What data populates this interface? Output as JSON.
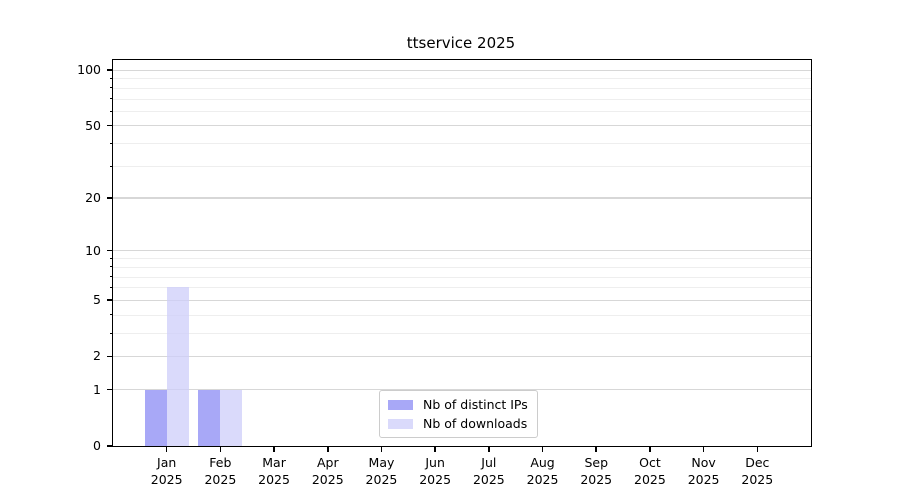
{
  "title": "ttservice 2025",
  "colors": {
    "background": "#ffffff",
    "axis": "#000000",
    "grid_major": "#d7d7d7",
    "grid_minor": "#eeeeee",
    "ips_bar": "rgba(134,134,244,0.72)",
    "downloads_bar": "rgba(205,205,250,0.75)",
    "ips_bar_hex_on_white": "#aaaaf7",
    "downloads_bar_hex_on_white": "#dcdcfb",
    "legend_border": "#cccccc"
  },
  "chart_data": {
    "type": "bar",
    "title": "ttservice 2025",
    "categories": [
      "Jan",
      "Feb",
      "Mar",
      "Apr",
      "May",
      "Jun",
      "Jul",
      "Aug",
      "Sep",
      "Oct",
      "Nov",
      "Dec"
    ],
    "year_label": "2025",
    "series": [
      {
        "name": "Nb of distinct IPs",
        "color_key": "ips_bar",
        "values": [
          1,
          1,
          0,
          0,
          0,
          0,
          0,
          0,
          0,
          0,
          0,
          0
        ]
      },
      {
        "name": "Nb of downloads",
        "color_key": "downloads_bar",
        "values": [
          6,
          1,
          0,
          0,
          0,
          0,
          0,
          0,
          0,
          0,
          0,
          0
        ]
      }
    ],
    "y_scale": "log1p",
    "y_ticks": [
      0,
      1,
      2,
      5,
      10,
      20,
      50,
      100
    ],
    "y_minor_ticks": [
      3,
      4,
      6,
      7,
      8,
      9,
      30,
      40,
      60,
      70,
      80,
      90
    ],
    "ylim": [
      0,
      108
    ],
    "xlabel": "",
    "ylabel": "",
    "grid": "horizontal",
    "legend_position": "lower center (inside axes)"
  }
}
